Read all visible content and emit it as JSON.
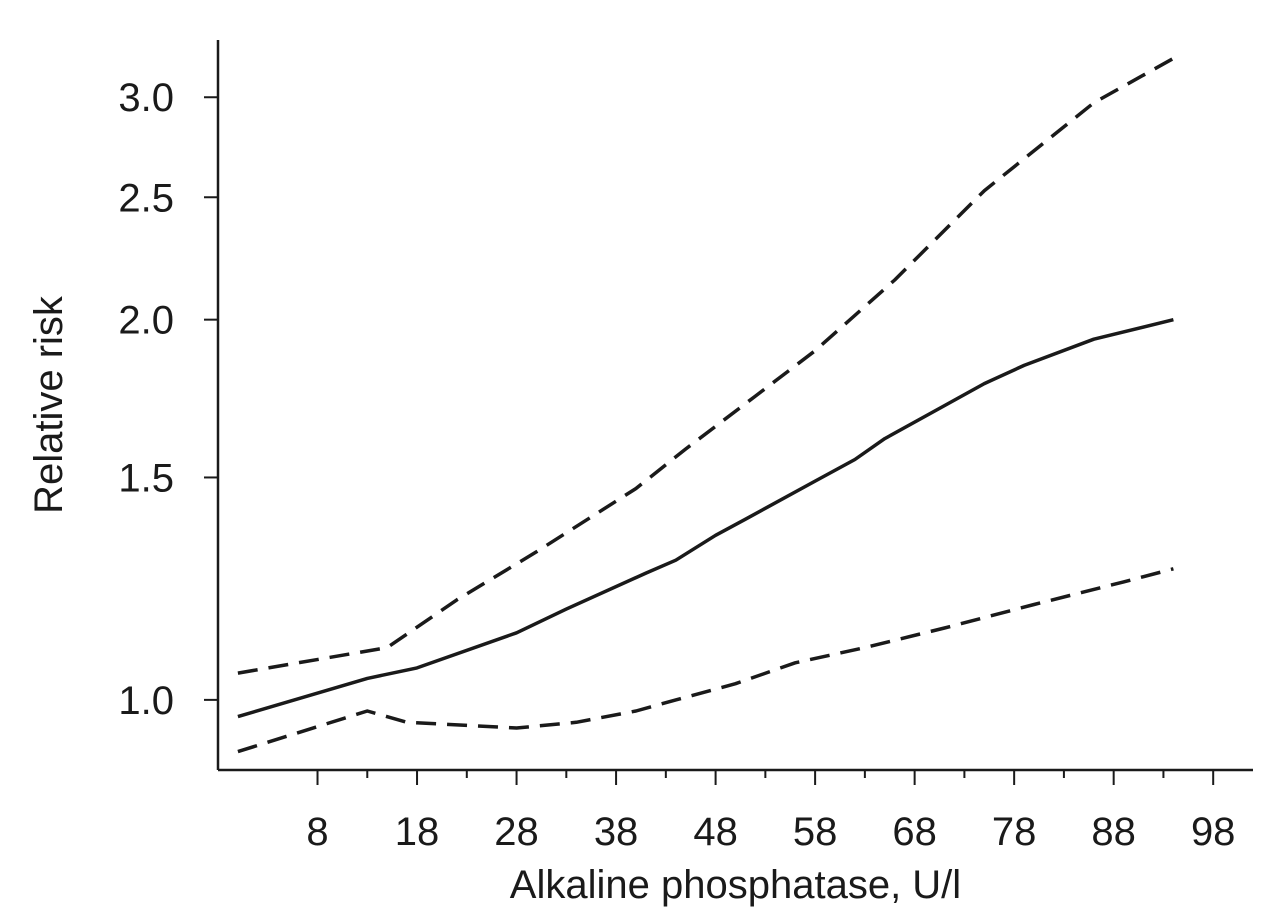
{
  "chart_data": {
    "type": "line",
    "title": "",
    "xlabel": "Alkaline phosphatase, U/l",
    "ylabel": "Relative risk",
    "y_scale": "log",
    "xlim": [
      -2,
      102
    ],
    "ylim": [
      0.88,
      3.33
    ],
    "x_ticks": [
      8,
      18,
      28,
      38,
      48,
      58,
      68,
      78,
      88,
      98
    ],
    "x_minor_ticks": [
      13,
      23,
      33,
      43,
      53,
      63,
      73,
      83,
      93
    ],
    "y_ticks": [
      {
        "value": 1.0,
        "label": "1.0"
      },
      {
        "value": 1.5,
        "label": "1.5"
      },
      {
        "value": 2.0,
        "label": "2.0"
      },
      {
        "value": 2.5,
        "label": "2.5"
      },
      {
        "value": 3.0,
        "label": "3.0"
      }
    ],
    "grid": false,
    "legend": "none",
    "series": [
      {
        "style": "solid",
        "color": "#1a1a1a",
        "x": [
          0,
          13,
          18,
          28,
          33,
          41,
          44,
          48,
          51,
          58,
          62,
          65,
          71,
          75,
          79,
          86,
          94
        ],
        "y": [
          0.97,
          1.04,
          1.06,
          1.13,
          1.18,
          1.26,
          1.29,
          1.35,
          1.39,
          1.49,
          1.55,
          1.61,
          1.71,
          1.78,
          1.84,
          1.93,
          2.0
        ]
      },
      {
        "style": "dashed",
        "color": "#1a1a1a",
        "x": [
          0,
          15,
          22,
          30,
          40,
          45,
          52,
          58,
          66,
          75,
          86,
          94
        ],
        "y": [
          1.05,
          1.1,
          1.2,
          1.31,
          1.47,
          1.58,
          1.74,
          1.89,
          2.15,
          2.53,
          2.97,
          3.22
        ]
      },
      {
        "style": "dashed",
        "color": "#1a1a1a",
        "x": [
          0,
          13,
          17,
          28,
          34,
          40,
          44,
          50,
          56,
          63,
          71,
          80,
          89,
          94
        ],
        "y": [
          0.91,
          0.98,
          0.96,
          0.95,
          0.96,
          0.98,
          1.0,
          1.03,
          1.07,
          1.1,
          1.14,
          1.19,
          1.24,
          1.27
        ]
      }
    ]
  }
}
